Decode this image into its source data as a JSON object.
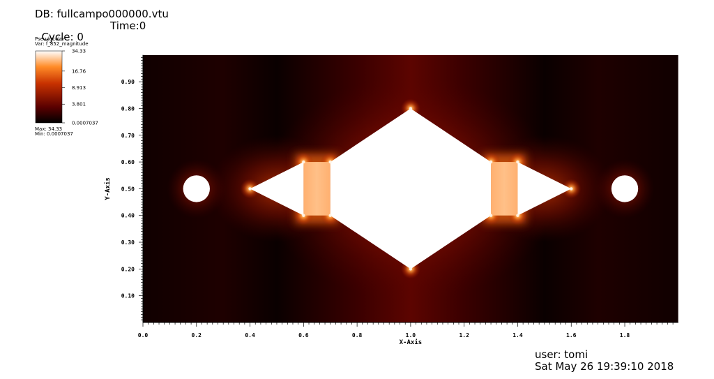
{
  "header": {
    "db": "DB: fullcampo000000.vtu",
    "cycle": "Cycle: 0",
    "time": "Time:0"
  },
  "legend": {
    "title": "Pseudocolor",
    "var": "Var: f_852_magnitude",
    "ticks": [
      "34.33",
      "16.76",
      "8.913",
      "3.801",
      "0.0007037"
    ],
    "max": "Max: 34.33",
    "min": "Min: 0.0007037",
    "colors": [
      "#000000",
      "#5a0000",
      "#c83200",
      "#ff8c28",
      "#ffffff"
    ]
  },
  "footer": {
    "user": "user: tomi",
    "date": "Sat May 26 19:39:10 2018"
  },
  "chart_data": {
    "type": "heatmap",
    "xlabel": "X-Axis",
    "ylabel": "Y-Axis",
    "xlim": [
      0,
      2
    ],
    "ylim": [
      0,
      1
    ],
    "x_ticks": [
      "0.0",
      "0.2",
      "0.4",
      "0.6",
      "0.8",
      "1.0",
      "1.2",
      "1.4",
      "1.6",
      "1.8"
    ],
    "y_ticks": [
      "0.10",
      "0.20",
      "0.30",
      "0.40",
      "0.50",
      "0.60",
      "0.70",
      "0.80",
      "0.90"
    ],
    "geometry": {
      "circles": [
        {
          "cx": 0.2,
          "cy": 0.5,
          "r": 0.05
        },
        {
          "cx": 1.8,
          "cy": 0.5,
          "r": 0.05
        }
      ],
      "left_triangle": [
        [
          0.4,
          0.5
        ],
        [
          0.6,
          0.6
        ],
        [
          0.6,
          0.4
        ]
      ],
      "right_triangle": [
        [
          1.6,
          0.5
        ],
        [
          1.4,
          0.6
        ],
        [
          1.4,
          0.4
        ]
      ],
      "diamond": [
        [
          0.7,
          0.6
        ],
        [
          1.0,
          0.8
        ],
        [
          1.3,
          0.6
        ],
        [
          1.3,
          0.4
        ],
        [
          1.0,
          0.2
        ],
        [
          0.7,
          0.4
        ]
      ],
      "bands": [
        {
          "x0": 0.6,
          "x1": 0.7,
          "y0": 0.4,
          "y1": 0.6
        },
        {
          "x0": 1.3,
          "x1": 1.4,
          "y0": 0.4,
          "y1": 0.6
        }
      ],
      "hotspots": [
        [
          0.6,
          0.6
        ],
        [
          0.7,
          0.6
        ],
        [
          0.6,
          0.4
        ],
        [
          0.7,
          0.4
        ],
        [
          1.3,
          0.6
        ],
        [
          1.4,
          0.6
        ],
        [
          1.3,
          0.4
        ],
        [
          1.4,
          0.4
        ],
        [
          1.0,
          0.8
        ],
        [
          1.0,
          0.2
        ],
        [
          0.4,
          0.5
        ],
        [
          1.6,
          0.5
        ]
      ]
    }
  }
}
